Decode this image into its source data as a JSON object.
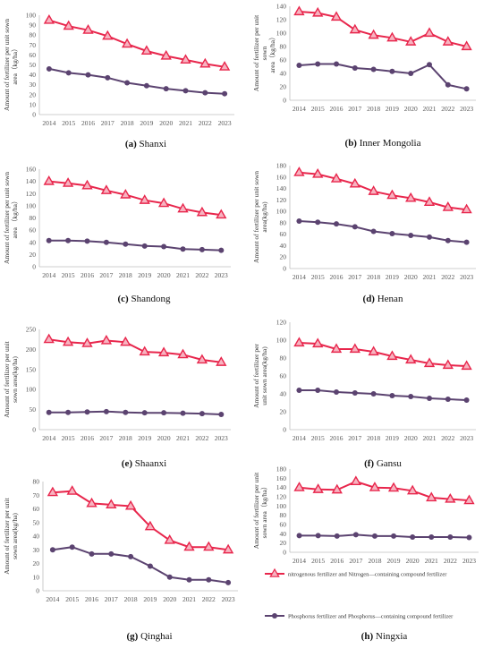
{
  "colors": {
    "nitrogen": "#E8264C",
    "nitrogen_fill": "#F7B3C0",
    "phosphorus": "#5B4370",
    "axis": "#BFBFBF",
    "grid": "#D9D9D9"
  },
  "legend": {
    "nitrogen": "nitrogenous fertilizer and Nitrogen—containing compound fertilizer",
    "phosphorus": "Phosphorus fertilizer and Phosphorus—containing compound fertilizer"
  },
  "chart_data": [
    {
      "type": "line",
      "letter": "(a)",
      "title": "Shanxi",
      "ylabel": [
        "Amount of fertilizer per unit sown",
        "area（kg/ha）"
      ],
      "ylim": [
        0,
        100
      ],
      "ystep": 10,
      "categories": [
        "2014",
        "2015",
        "2016",
        "2017",
        "2018",
        "2019",
        "2020",
        "2021",
        "2022",
        "2023"
      ],
      "series": [
        {
          "key": "nitrogen",
          "values": [
            95,
            89,
            85,
            79,
            71,
            64,
            59,
            55,
            51,
            48
          ]
        },
        {
          "key": "phosphorus",
          "values": [
            46,
            42,
            40,
            37,
            32,
            29,
            26,
            24,
            22,
            21
          ]
        }
      ]
    },
    {
      "type": "line",
      "letter": "(b)",
      "title": "Inner Mongolia",
      "ylabel": [
        "Amount of fertilizer per unit",
        "sown",
        "area（kg/ha）"
      ],
      "ylim": [
        0,
        140
      ],
      "ystep": 20,
      "categories": [
        "2014",
        "2015",
        "2016",
        "2017",
        "2018",
        "2019",
        "2020",
        "2021",
        "2022",
        "2023"
      ],
      "series": [
        {
          "key": "nitrogen",
          "values": [
            132,
            130,
            124,
            105,
            97,
            93,
            87,
            100,
            87,
            80
          ]
        },
        {
          "key": "phosphorus",
          "values": [
            52,
            54,
            54,
            48,
            46,
            43,
            40,
            53,
            23,
            17
          ]
        }
      ]
    },
    {
      "type": "line",
      "letter": "(c)",
      "title": "Shandong",
      "ylabel": [
        "Amount of fertilizer per unit sown",
        "area （kg/ha）"
      ],
      "ylim": [
        0,
        160
      ],
      "ystep": 20,
      "categories": [
        "2014",
        "2015",
        "2016",
        "2017",
        "2018",
        "2019",
        "2020",
        "2021",
        "2022",
        "2023"
      ],
      "series": [
        {
          "key": "nitrogen",
          "values": [
            140,
            137,
            133,
            125,
            118,
            109,
            104,
            95,
            89,
            85
          ]
        },
        {
          "key": "phosphorus",
          "values": [
            43,
            43,
            42,
            40,
            37,
            34,
            33,
            29,
            28,
            27
          ]
        }
      ]
    },
    {
      "type": "line",
      "letter": "(d)",
      "title": "Henan",
      "ylabel": [
        "Amount of fertilizer per unit sown",
        "area(kg/ha)"
      ],
      "ylim": [
        0,
        180
      ],
      "ystep": 20,
      "categories": [
        "2014",
        "2015",
        "2016",
        "2017",
        "2018",
        "2019",
        "2020",
        "2021",
        "2022",
        "2023"
      ],
      "series": [
        {
          "key": "nitrogen",
          "values": [
            168,
            165,
            157,
            148,
            135,
            128,
            123,
            116,
            107,
            103
          ]
        },
        {
          "key": "phosphorus",
          "values": [
            83,
            81,
            78,
            73,
            65,
            61,
            58,
            55,
            49,
            46
          ]
        }
      ]
    },
    {
      "type": "line",
      "letter": "(e)",
      "title": "Shaanxi",
      "ylabel": [
        "Amount of fertilizer per unit",
        "sown area(kg/ha)"
      ],
      "ylim": [
        0,
        250
      ],
      "ystep": 50,
      "categories": [
        "2014",
        "2015",
        "2016",
        "2017",
        "2018",
        "2019",
        "2020",
        "2021",
        "2022",
        "2023"
      ],
      "series": [
        {
          "key": "nitrogen",
          "values": [
            225,
            218,
            215,
            222,
            218,
            194,
            192,
            187,
            174,
            168
          ]
        },
        {
          "key": "phosphorus",
          "values": [
            43,
            43,
            44,
            45,
            43,
            42,
            42,
            41,
            40,
            38
          ]
        }
      ]
    },
    {
      "type": "line",
      "letter": "(f)",
      "title": "Gansu",
      "ylabel": [
        "Amount of fertilizer per",
        "unit sown area(kg/ha)"
      ],
      "ylim": [
        0,
        120
      ],
      "ystep": 20,
      "categories": [
        "2014",
        "2015",
        "2016",
        "2017",
        "2018",
        "2019",
        "2020",
        "2021",
        "2022",
        "2023"
      ],
      "series": [
        {
          "key": "nitrogen",
          "values": [
            97,
            96,
            90,
            90,
            87,
            82,
            78,
            74,
            72,
            71
          ]
        },
        {
          "key": "phosphorus",
          "values": [
            44,
            44,
            42,
            41,
            40,
            38,
            37,
            35,
            34,
            33
          ]
        }
      ]
    },
    {
      "type": "line",
      "letter": "(g)",
      "title": "Qinghai",
      "ylabel": [
        "Amount of fertilizer per unit",
        "sown area(kg/ha)"
      ],
      "ylim": [
        0,
        80
      ],
      "ystep": 10,
      "categories": [
        "2014",
        "2015",
        "2016",
        "2017",
        "2018",
        "2019",
        "2020",
        "2021",
        "2022",
        "2023"
      ],
      "series": [
        {
          "key": "nitrogen",
          "values": [
            72,
            73,
            64,
            63,
            62,
            47,
            37,
            32,
            32,
            30
          ]
        },
        {
          "key": "phosphorus",
          "values": [
            30,
            32,
            27,
            27,
            25,
            18,
            10,
            8,
            8,
            6
          ]
        }
      ]
    },
    {
      "type": "line",
      "letter": "(h)",
      "title": "Ningxia",
      "ylabel": [
        "Amount of fertilizer per unit",
        "sown area（kg/ha）"
      ],
      "ylim": [
        0,
        180
      ],
      "ystep": 20,
      "categories": [
        "2014",
        "2015",
        "2016",
        "2017",
        "2018",
        "2019",
        "2020",
        "2021",
        "2022",
        "2023"
      ],
      "series": [
        {
          "key": "nitrogen",
          "values": [
            140,
            136,
            135,
            153,
            140,
            139,
            133,
            118,
            115,
            112
          ]
        },
        {
          "key": "phosphorus",
          "values": [
            36,
            36,
            35,
            38,
            35,
            35,
            33,
            33,
            33,
            32
          ]
        }
      ]
    }
  ]
}
